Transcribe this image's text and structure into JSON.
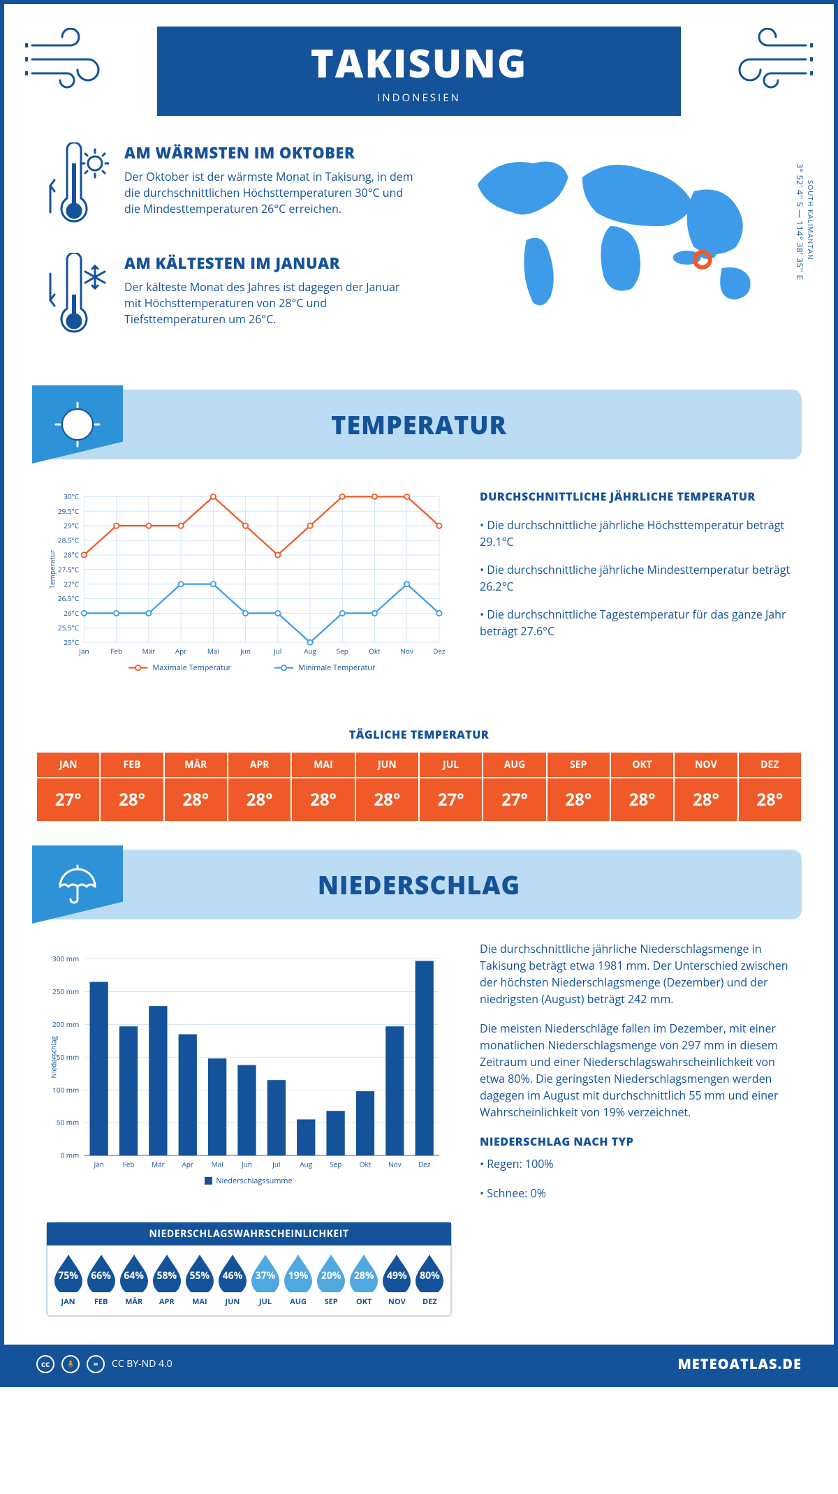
{
  "header": {
    "title": "TAKISUNG",
    "subtitle": "INDONESIEN"
  },
  "coords": {
    "region": "SOUTH KALIMANTAN",
    "lat": "3° 52' 4'' S",
    "lon": "114° 38' 35'' E"
  },
  "intro": {
    "warm": {
      "title": "AM WÄRMSTEN IM OKTOBER",
      "text": "Der Oktober ist der wärmste Monat in Takisung, in dem die durchschnittlichen Höchsttemperaturen 30°C und die Mindesttemperaturen 26°C erreichen."
    },
    "cold": {
      "title": "AM KÄLTESTEN IM JANUAR",
      "text": "Der kälteste Monat des Jahres ist dagegen der Januar mit Höchsttemperaturen von 28°C und Tiefsttemperaturen um 26°C."
    }
  },
  "months": [
    "Jan",
    "Feb",
    "Mär",
    "Apr",
    "Mai",
    "Jun",
    "Jul",
    "Aug",
    "Sep",
    "Okt",
    "Nov",
    "Dez"
  ],
  "months_upper": [
    "JAN",
    "FEB",
    "MÄR",
    "APR",
    "MAI",
    "JUN",
    "JUL",
    "AUG",
    "SEP",
    "OKT",
    "NOV",
    "DEZ"
  ],
  "temp_section": {
    "title": "TEMPERATUR",
    "chart": {
      "ylabel": "Temperatur",
      "ymin": 25,
      "ymax": 30,
      "ystep": 0.5,
      "max_series": [
        28,
        29,
        29,
        29,
        30,
        29,
        28,
        29,
        30,
        30,
        30,
        29
      ],
      "min_series": [
        26,
        26,
        26,
        27,
        27,
        26,
        26,
        25,
        26,
        26,
        27,
        26
      ],
      "max_color": "#f05a28",
      "min_color": "#3d9be9",
      "grid_color": "#d0e4f5",
      "legend_max": "Maximale Temperatur",
      "legend_min": "Minimale Temperatur"
    },
    "desc": {
      "title": "DURCHSCHNITTLICHE JÄHRLICHE TEMPERATUR",
      "bullets": [
        "• Die durchschnittliche jährliche Höchsttemperatur beträgt 29.1°C",
        "• Die durchschnittliche jährliche Mindesttemperatur beträgt 26.2°C",
        "• Die durchschnittliche Tagestemperatur für das ganze Jahr beträgt 27.6°C"
      ]
    },
    "daily_title": "TÄGLICHE TEMPERATUR",
    "daily_values": [
      "27°",
      "28°",
      "28°",
      "28°",
      "28°",
      "28°",
      "27°",
      "27°",
      "28°",
      "28°",
      "28°",
      "28°"
    ]
  },
  "precip_section": {
    "title": "NIEDERSCHLAG",
    "chart": {
      "ylabel": "Niederschlag",
      "ymin": 0,
      "ymax": 300,
      "ystep": 50,
      "values": [
        265,
        197,
        228,
        185,
        148,
        138,
        115,
        55,
        68,
        98,
        197,
        297
      ],
      "bar_color": "#14529a",
      "legend": "Niederschlagssumme"
    },
    "desc": {
      "p1": "Die durchschnittliche jährliche Niederschlagsmenge in Takisung beträgt etwa 1981 mm. Der Unterschied zwischen der höchsten Niederschlagsmenge (Dezember) und der niedrigsten (August) beträgt 242 mm.",
      "p2": "Die meisten Niederschläge fallen im Dezember, mit einer monatlichen Niederschlagsmenge von 297 mm in diesem Zeitraum und einer Niederschlagswahrscheinlichkeit von etwa 80%. Die geringsten Niederschlagsmengen werden dagegen im August mit durchschnittlich 55 mm und einer Wahrscheinlichkeit von 19% verzeichnet.",
      "type_title": "NIEDERSCHLAG NACH TYP",
      "type_bullets": [
        "• Regen: 100%",
        "• Schnee: 0%"
      ]
    },
    "prob": {
      "title": "NIEDERSCHLAGSWAHRSCHEINLICHKEIT",
      "values": [
        75,
        66,
        64,
        58,
        55,
        46,
        37,
        19,
        20,
        28,
        49,
        80
      ],
      "color_dark": "#14529a",
      "color_light": "#4fa8e0"
    }
  },
  "footer": {
    "license": "CC BY-ND 4.0",
    "site": "METEOATLAS.DE"
  }
}
